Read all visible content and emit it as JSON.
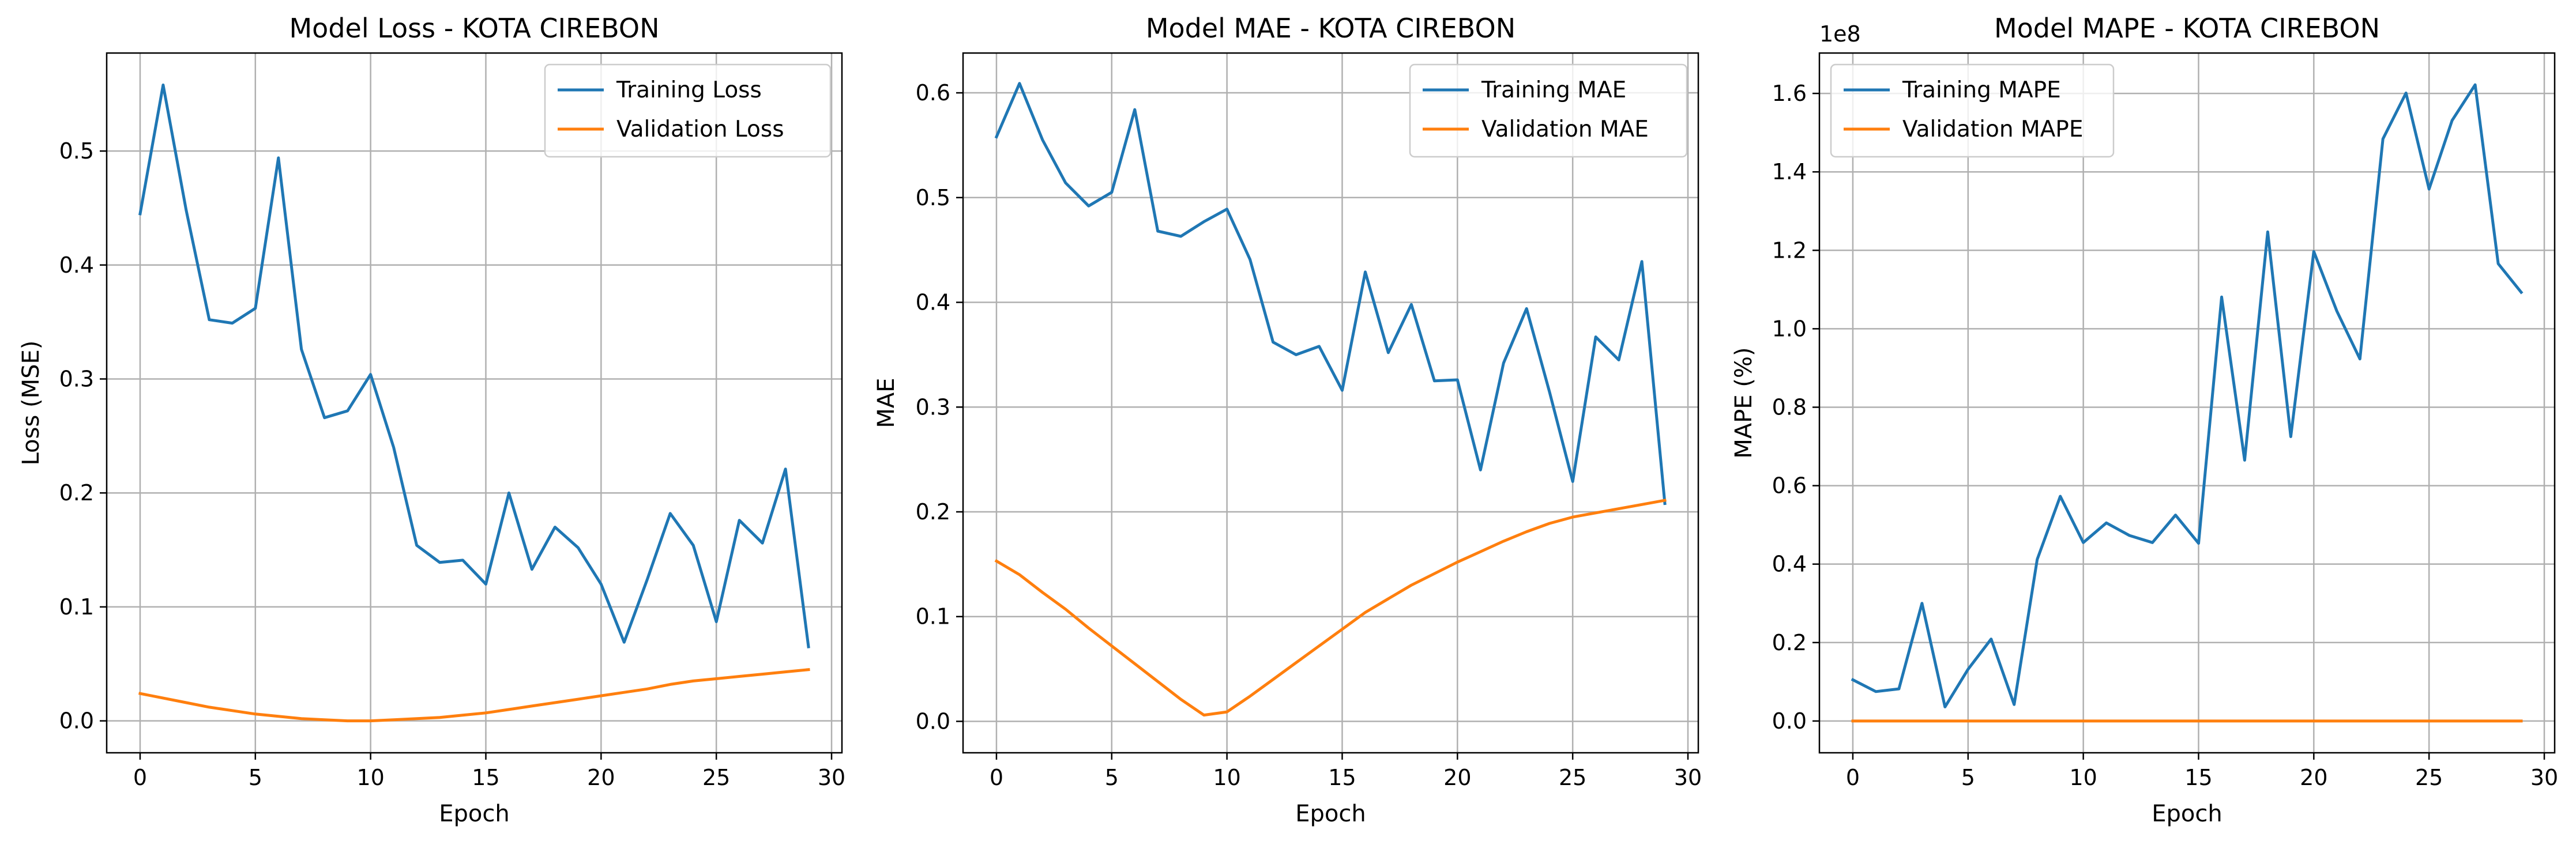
{
  "colors": {
    "training": "#1f77b4",
    "validation": "#ff7f0e"
  },
  "chart_data": [
    {
      "type": "line",
      "title": "Model Loss - KOTA CIREBON",
      "xlabel": "Epoch",
      "ylabel": "Loss (MSE)",
      "xlim": [
        -1.45,
        30.45
      ],
      "ylim": [
        -0.028,
        0.586
      ],
      "xticks": [
        0,
        5,
        10,
        15,
        20,
        25,
        30
      ],
      "yticks": [
        0.0,
        0.1,
        0.2,
        0.3,
        0.4,
        0.5
      ],
      "ytick_labels": [
        "0.0",
        "0.1",
        "0.2",
        "0.3",
        "0.4",
        "0.5"
      ],
      "grid": true,
      "legend": "upper right",
      "x": [
        0,
        1,
        2,
        3,
        4,
        5,
        6,
        7,
        8,
        9,
        10,
        11,
        12,
        13,
        14,
        15,
        16,
        17,
        18,
        19,
        20,
        21,
        22,
        23,
        24,
        25,
        26,
        27,
        28,
        29
      ],
      "series": [
        {
          "name": "Training Loss",
          "color": "#1f77b4",
          "values": [
            0.445,
            0.558,
            0.448,
            0.352,
            0.349,
            0.362,
            0.494,
            0.326,
            0.266,
            0.272,
            0.304,
            0.24,
            0.154,
            0.139,
            0.141,
            0.12,
            0.2,
            0.133,
            0.17,
            0.152,
            0.12,
            0.069,
            0.124,
            0.182,
            0.154,
            0.087,
            0.176,
            0.156,
            0.221,
            0.065
          ]
        },
        {
          "name": "Validation Loss",
          "color": "#ff7f0e",
          "values": [
            0.024,
            0.02,
            0.016,
            0.012,
            0.009,
            0.006,
            0.004,
            0.002,
            0.001,
            0.0,
            0.0,
            0.001,
            0.002,
            0.003,
            0.005,
            0.007,
            0.01,
            0.013,
            0.016,
            0.019,
            0.022,
            0.025,
            0.028,
            0.032,
            0.035,
            0.037,
            0.039,
            0.041,
            0.043,
            0.045
          ]
        }
      ]
    },
    {
      "type": "line",
      "title": "Model MAE - KOTA CIREBON",
      "xlabel": "Epoch",
      "ylabel": "MAE",
      "xlim": [
        -1.45,
        30.45
      ],
      "ylim": [
        -0.03,
        0.638
      ],
      "xticks": [
        0,
        5,
        10,
        15,
        20,
        25,
        30
      ],
      "yticks": [
        0.0,
        0.1,
        0.2,
        0.3,
        0.4,
        0.5,
        0.6
      ],
      "ytick_labels": [
        "0.0",
        "0.1",
        "0.2",
        "0.3",
        "0.4",
        "0.5",
        "0.6"
      ],
      "grid": true,
      "legend": "upper right",
      "x": [
        0,
        1,
        2,
        3,
        4,
        5,
        6,
        7,
        8,
        9,
        10,
        11,
        12,
        13,
        14,
        15,
        16,
        17,
        18,
        19,
        20,
        21,
        22,
        23,
        24,
        25,
        26,
        27,
        28,
        29
      ],
      "series": [
        {
          "name": "Training MAE",
          "color": "#1f77b4",
          "values": [
            0.558,
            0.609,
            0.555,
            0.514,
            0.492,
            0.505,
            0.584,
            0.468,
            0.463,
            0.477,
            0.489,
            0.441,
            0.362,
            0.35,
            0.358,
            0.316,
            0.429,
            0.352,
            0.398,
            0.325,
            0.326,
            0.24,
            0.342,
            0.394,
            0.314,
            0.229,
            0.367,
            0.345,
            0.439,
            0.208
          ]
        },
        {
          "name": "Validation MAE",
          "color": "#ff7f0e",
          "values": [
            0.153,
            0.14,
            0.123,
            0.107,
            0.089,
            0.072,
            0.055,
            0.038,
            0.021,
            0.006,
            0.009,
            0.024,
            0.04,
            0.056,
            0.072,
            0.088,
            0.104,
            0.117,
            0.13,
            0.141,
            0.152,
            0.162,
            0.172,
            0.181,
            0.189,
            0.195,
            0.199,
            0.203,
            0.207,
            0.211
          ]
        }
      ]
    },
    {
      "type": "line",
      "title": "Model MAPE - KOTA CIREBON",
      "xlabel": "Epoch",
      "ylabel": "MAPE (%)",
      "offset_label": "1e8",
      "xlim": [
        -1.45,
        30.45
      ],
      "ylim": [
        -0.081,
        1.703
      ],
      "xticks": [
        0,
        5,
        10,
        15,
        20,
        25,
        30
      ],
      "yticks": [
        0.0,
        0.2,
        0.4,
        0.6,
        0.8,
        1.0,
        1.2,
        1.4,
        1.6
      ],
      "ytick_labels": [
        "0.0",
        "0.2",
        "0.4",
        "0.6",
        "0.8",
        "1.0",
        "1.2",
        "1.4",
        "1.6"
      ],
      "grid": true,
      "legend": "upper left",
      "x": [
        0,
        1,
        2,
        3,
        4,
        5,
        6,
        7,
        8,
        9,
        10,
        11,
        12,
        13,
        14,
        15,
        16,
        17,
        18,
        19,
        20,
        21,
        22,
        23,
        24,
        25,
        26,
        27,
        28,
        29
      ],
      "series": [
        {
          "name": "Training MAPE",
          "color": "#1f77b4",
          "values": [
            0.105,
            0.075,
            0.082,
            0.3,
            0.036,
            0.132,
            0.209,
            0.042,
            0.412,
            0.573,
            0.455,
            0.505,
            0.473,
            0.455,
            0.525,
            0.453,
            1.081,
            0.665,
            1.247,
            0.725,
            1.197,
            1.045,
            0.923,
            1.484,
            1.601,
            1.356,
            1.531,
            1.622,
            1.166,
            1.093
          ]
        },
        {
          "name": "Validation MAPE",
          "color": "#ff7f0e",
          "values": [
            0,
            0,
            0,
            0,
            0,
            0,
            0,
            0,
            0,
            0,
            0,
            0,
            0,
            0,
            0,
            0,
            0,
            0,
            0,
            0,
            0,
            0,
            0,
            0,
            0,
            0,
            0,
            0,
            0,
            0
          ]
        }
      ]
    }
  ]
}
